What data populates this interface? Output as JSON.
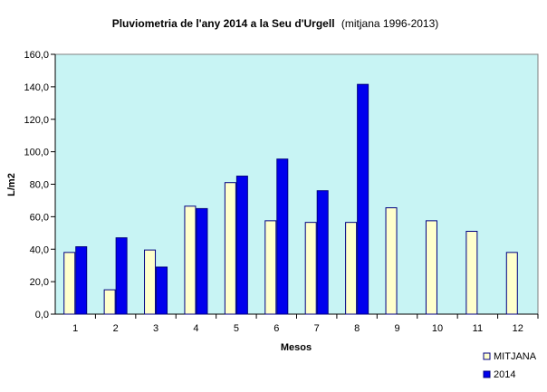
{
  "chart_data": {
    "type": "bar",
    "title": "Pluviometria de l'any 2014 a la Seu d'Urgell",
    "subtitle": "(mitjana 1996-2013)",
    "xlabel": "Mesos",
    "ylabel": "L/m2",
    "ylim": [
      0,
      160
    ],
    "yticks": [
      "0,0",
      "20,0",
      "40,0",
      "60,0",
      "80,0",
      "100,0",
      "120,0",
      "140,0",
      "160,0"
    ],
    "categories": [
      "1",
      "2",
      "3",
      "4",
      "5",
      "6",
      "7",
      "8",
      "9",
      "10",
      "11",
      "12"
    ],
    "grid": false,
    "legend_position": "bottom-right",
    "plot_background": "#c8f4f4",
    "series": [
      {
        "name": "MITJANA",
        "color": "#ffffcc",
        "values": [
          38,
          15,
          39.5,
          66.5,
          81,
          57.5,
          56.5,
          56.5,
          65.5,
          57.5,
          51,
          38
        ]
      },
      {
        "name": "2014",
        "color": "#0000ee",
        "values": [
          41.5,
          47,
          29,
          65,
          85,
          95.5,
          76,
          141.5,
          null,
          null,
          null,
          null
        ]
      }
    ]
  }
}
